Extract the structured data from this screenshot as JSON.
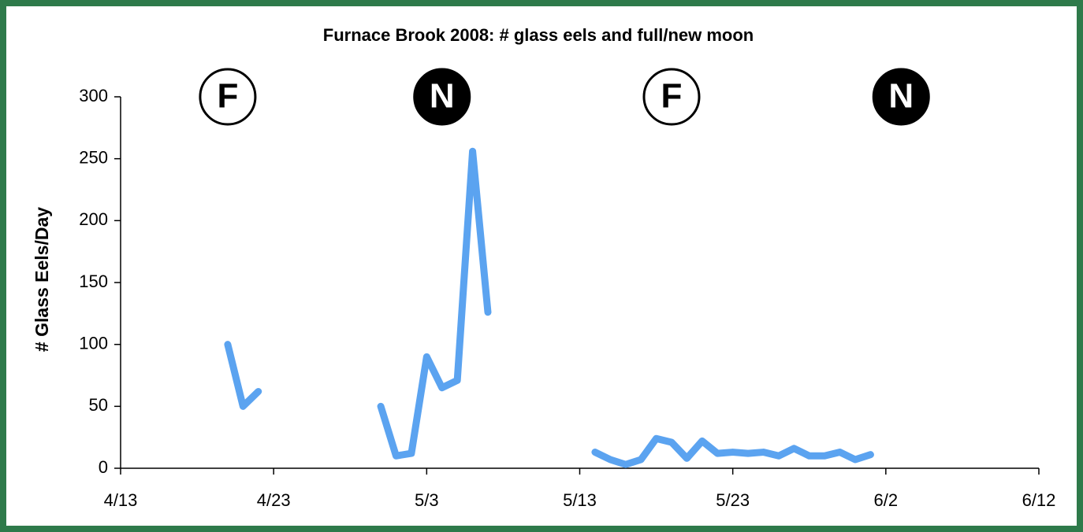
{
  "chart_data": {
    "type": "line",
    "title": "Furnace Brook 2008: # glass eels and full/new moon",
    "y_label": "# Glass Eels/Day",
    "x": [
      "4/20",
      "4/21",
      "4/22",
      "4/23",
      "4/30",
      "5/1",
      "5/2",
      "5/3",
      "5/4",
      "5/5",
      "5/6",
      "5/7",
      "5/8",
      "5/14",
      "5/15",
      "5/16",
      "5/17",
      "5/18",
      "5/19",
      "5/20",
      "5/21",
      "5/22",
      "5/23",
      "5/24",
      "5/25",
      "5/26",
      "5/27",
      "5/28",
      "5/29",
      "5/30",
      "5/31",
      "6/1"
    ],
    "values": [
      100,
      50,
      62,
      null,
      50,
      10,
      12,
      90,
      65,
      71,
      256,
      126,
      null,
      13,
      7,
      3,
      7,
      24,
      21,
      8,
      22,
      12,
      13,
      12,
      13,
      10,
      16,
      10,
      10,
      13,
      7,
      11
    ],
    "color": "#5ba3f0",
    "xlim": [
      "4/13",
      "6/12"
    ],
    "xticks": [
      "4/13",
      "4/23",
      "5/3",
      "5/13",
      "5/23",
      "6/2",
      "6/12"
    ],
    "ylim": [
      0,
      300
    ],
    "yticks": [
      0,
      50,
      100,
      150,
      200,
      250,
      300
    ],
    "grid": false,
    "annotations": [
      {
        "label": "F",
        "x": "4/20",
        "color": "#ffffff"
      },
      {
        "label": "N",
        "x": "5/4",
        "color": "#000000"
      },
      {
        "label": "F",
        "x": "5/19",
        "color": "#ffffff"
      },
      {
        "label": "N",
        "x": "6/3",
        "color": "#000000"
      }
    ]
  }
}
